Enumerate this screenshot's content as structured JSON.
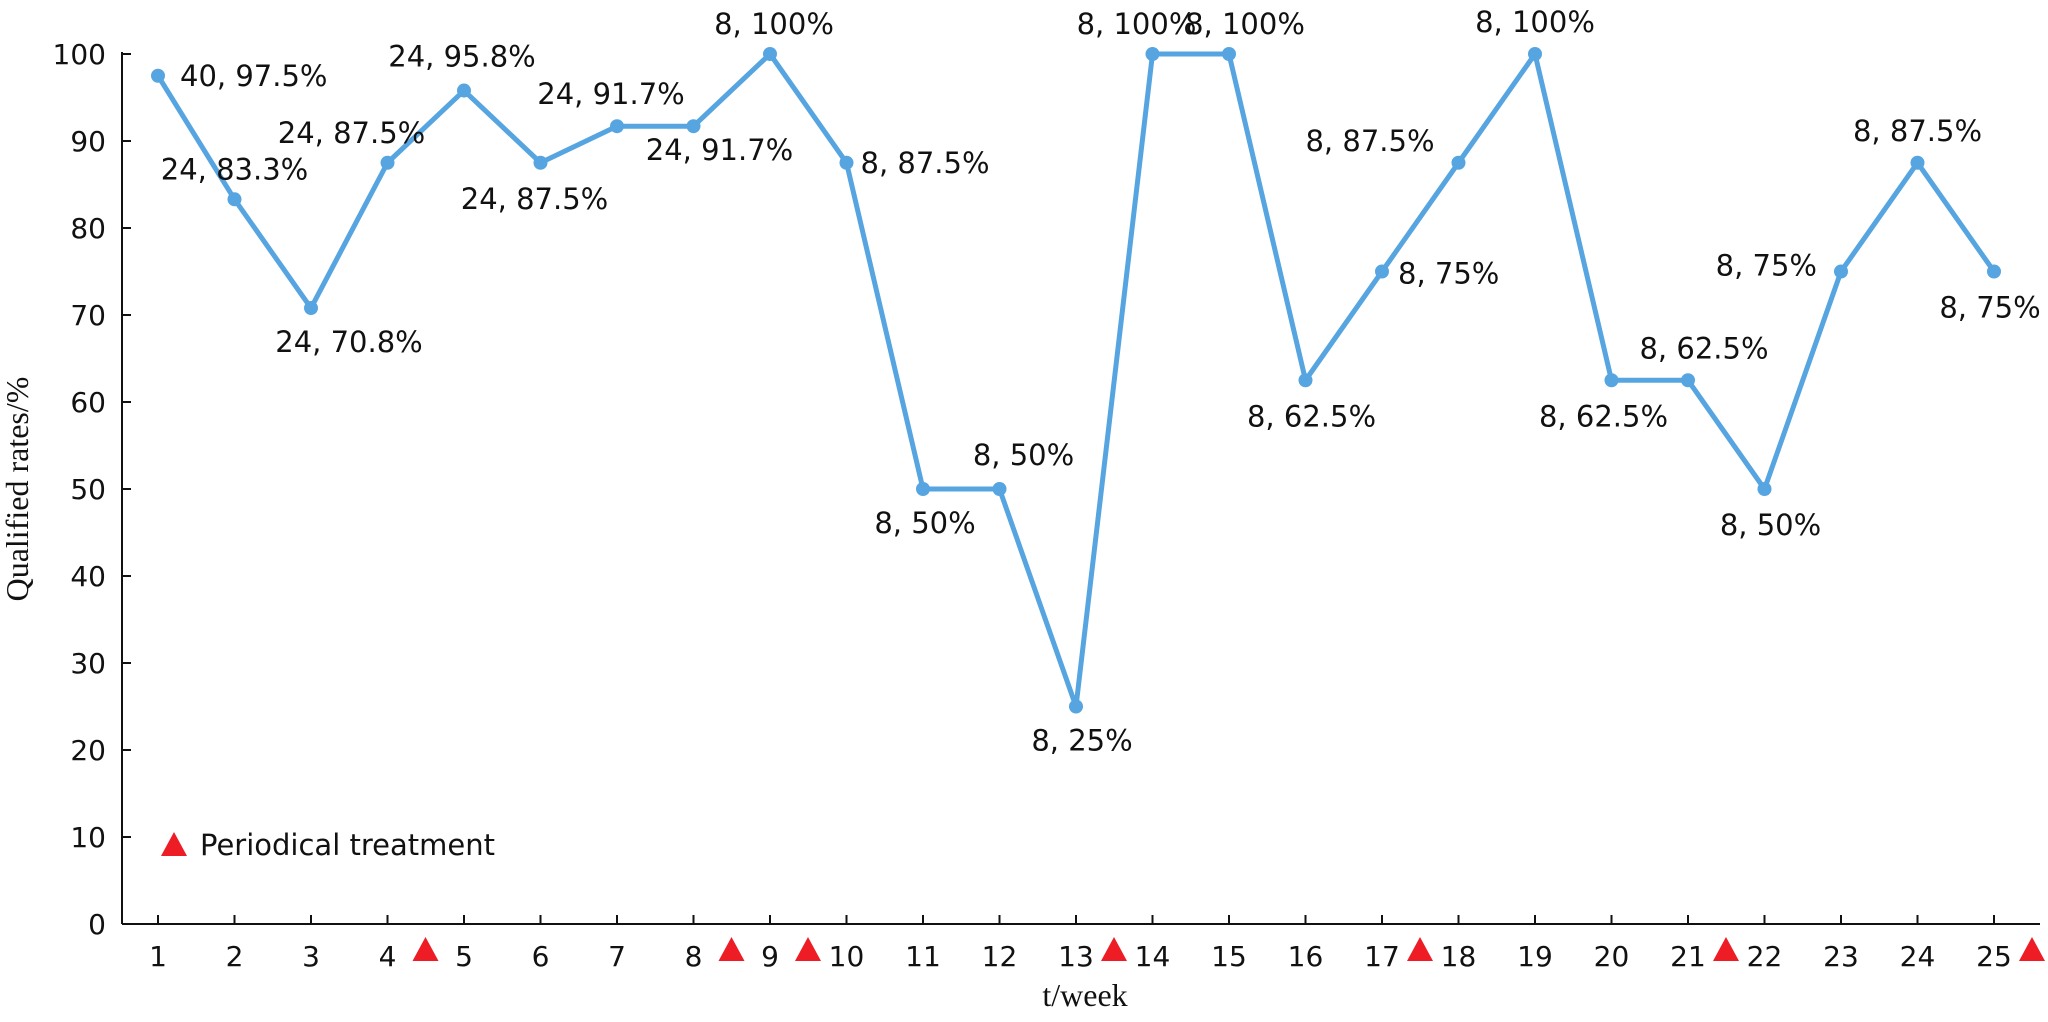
{
  "chart_data": {
    "type": "line",
    "xlabel": "t/week",
    "ylabel": "Qualified rates/%",
    "ylim": [
      0,
      100
    ],
    "yticks": [
      0,
      10,
      20,
      30,
      40,
      50,
      60,
      70,
      80,
      90,
      100
    ],
    "x": [
      1,
      2,
      3,
      4,
      5,
      6,
      7,
      8,
      9,
      10,
      11,
      12,
      13,
      14,
      15,
      16,
      17,
      18,
      19,
      20,
      21,
      22,
      23,
      24,
      25
    ],
    "series": [
      {
        "values": [
          97.5,
          83.3,
          70.8,
          87.5,
          95.8,
          87.5,
          91.7,
          91.7,
          100,
          87.5,
          50,
          50,
          25,
          100,
          100,
          62.5,
          75,
          87.5,
          100,
          62.5,
          62.5,
          50,
          75,
          87.5,
          75
        ],
        "color": "#56a5e1"
      }
    ],
    "data_labels": [
      "40, 97.5%",
      "24, 83.3%",
      "24, 70.8%",
      "24, 87.5%",
      "24, 95.8%",
      "24, 87.5%",
      "24, 91.7%",
      "24, 91.7%",
      "8, 100%",
      "8, 87.5%",
      "8, 50%",
      "8, 50%",
      "8, 25%",
      "8, 100%",
      "8, 100%",
      "8, 62.5%",
      "8, 75%",
      "8, 87.5%",
      "8, 100%",
      "8, 62.5%",
      "8, 62.5%",
      "8, 50%",
      "8, 75%",
      "8, 87.5%",
      "8, 75%"
    ],
    "periodical_treatment_after_weeks": [
      4,
      8,
      9,
      13,
      17,
      21,
      25
    ],
    "marker_color": "#ee1c25",
    "legend": {
      "label": "Periodical treatment",
      "placement": "bottom-left"
    },
    "grid": false
  }
}
